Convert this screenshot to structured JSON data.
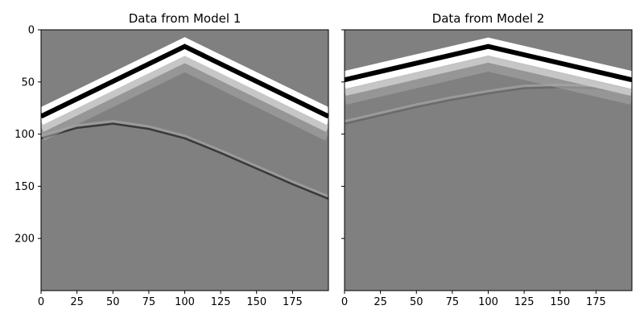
{
  "chart_data": [
    {
      "type": "heatmap",
      "title": "Data from Model 1",
      "colormap": "gray",
      "background_color": "#808080",
      "xlim": [
        0,
        200
      ],
      "ylim": [
        250,
        0
      ],
      "xticks": [
        0,
        25,
        50,
        75,
        100,
        125,
        150,
        175
      ],
      "yticks": [
        0,
        50,
        100,
        150,
        200
      ],
      "show_ytick_labels": true,
      "events": [
        {
          "kind": "direct-arrival",
          "color": "#000000",
          "points": [
            [
              0,
              83
            ],
            [
              100,
              16
            ],
            [
              200,
              83
            ]
          ]
        },
        {
          "kind": "reflection",
          "color": "#3a3a3a",
          "points": [
            [
              0,
              104
            ],
            [
              25,
              94
            ],
            [
              50,
              90
            ],
            [
              75,
              95
            ],
            [
              100,
              104
            ],
            [
              125,
              118
            ],
            [
              150,
              133
            ],
            [
              175,
              148
            ],
            [
              200,
              162
            ]
          ]
        }
      ]
    },
    {
      "type": "heatmap",
      "title": "Data from Model 2",
      "colormap": "gray",
      "background_color": "#808080",
      "xlim": [
        0,
        200
      ],
      "ylim": [
        250,
        0
      ],
      "xticks": [
        0,
        25,
        50,
        75,
        100,
        125,
        150,
        175
      ],
      "yticks": [
        0,
        50,
        100,
        150,
        200
      ],
      "show_ytick_labels": false,
      "events": [
        {
          "kind": "direct-arrival",
          "color": "#000000",
          "points": [
            [
              0,
              48
            ],
            [
              100,
              16
            ],
            [
              200,
              48
            ]
          ]
        },
        {
          "kind": "reflection",
          "color": "#6a6a6a",
          "points": [
            [
              0,
              90
            ],
            [
              25,
              82
            ],
            [
              50,
              74
            ],
            [
              75,
              67
            ],
            [
              100,
              61
            ],
            [
              125,
              56
            ],
            [
              150,
              55
            ],
            [
              175,
              56
            ],
            [
              200,
              61
            ]
          ]
        }
      ]
    }
  ]
}
